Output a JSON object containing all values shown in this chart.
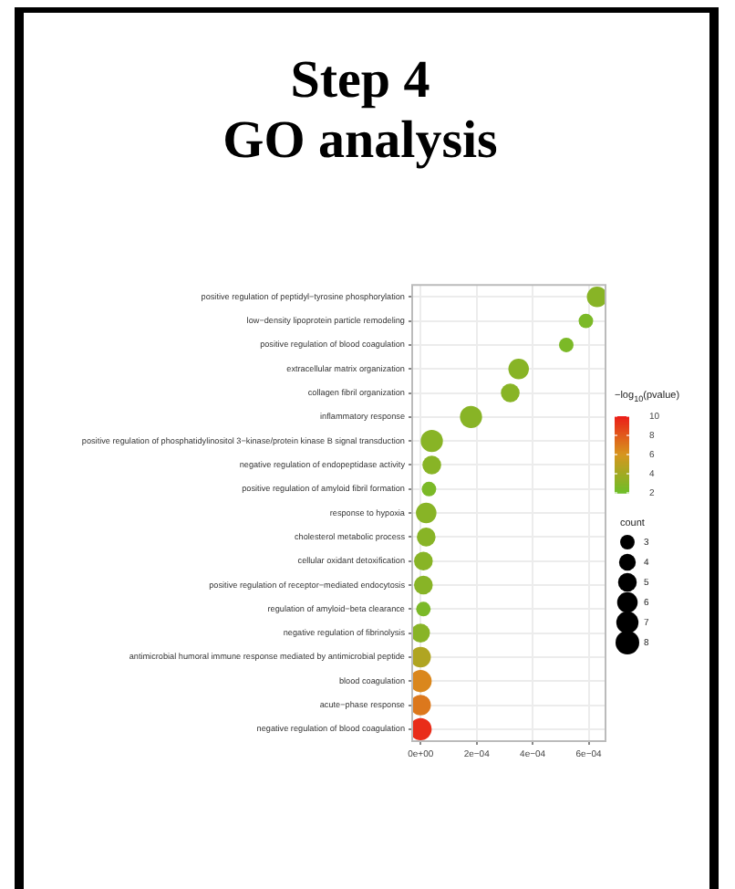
{
  "chart_data": {
    "type": "bubble",
    "title": "Step 4\nGO analysis",
    "orientation": "horizontal",
    "categories": [
      "positive regulation of peptidyl−tyrosine phosphorylation",
      "low−density lipoprotein particle remodeling",
      "positive regulation of blood coagulation",
      "extracellular matrix organization",
      "collagen fibril organization",
      "inflammatory response",
      "positive regulation of phosphatidylinositol 3−kinase/protein kinase B signal transduction",
      "negative regulation of endopeptidase activity",
      "positive regulation of amyloid fibril formation",
      "response to hypoxia",
      "cholesterol metabolic process",
      "cellular oxidant detoxification",
      "positive regulation of receptor−mediated endocytosis",
      "regulation of amyloid−beta clearance",
      "negative regulation of fibrinolysis",
      "antimicrobial humoral immune response mediated by antimicrobial peptide",
      "blood coagulation",
      "acute−phase response",
      "negative regulation of blood coagulation"
    ],
    "values": [
      0.00063,
      0.00059,
      0.00052,
      0.00035,
      0.00032,
      0.00018,
      4e-05,
      4e-05,
      3e-05,
      2e-05,
      2e-05,
      1e-05,
      1e-05,
      1e-05,
      0.0,
      0.0,
      0.0,
      0.0,
      0.0
    ],
    "sizes": [
      6,
      3,
      3,
      6,
      5,
      7,
      7,
      5,
      3,
      6,
      5,
      5,
      5,
      3,
      5,
      6,
      7,
      6,
      7
    ],
    "size_legend": [
      3,
      4,
      5,
      6,
      7,
      8
    ],
    "legend_title": "count",
    "cvalues": [
      3,
      2.5,
      2.5,
      3,
      3,
      3,
      3,
      3,
      2.5,
      3,
      3,
      3,
      3,
      2.5,
      3,
      4.5,
      6.5,
      7,
      9.5
    ],
    "clabel": "−log$_{10}$(pvalue)",
    "clim": [
      2,
      10
    ],
    "cticks": [
      2,
      4,
      6,
      8,
      10
    ],
    "xlim": [
      -3e-05,
      0.00066
    ],
    "xticks": [
      {
        "value": 0,
        "label": "0e+00"
      },
      {
        "value": 0.0002,
        "label": "2e−04"
      },
      {
        "value": 0.0004,
        "label": "4e−04"
      },
      {
        "value": 0.0006,
        "label": "6e−04"
      }
    ],
    "grid": true
  }
}
